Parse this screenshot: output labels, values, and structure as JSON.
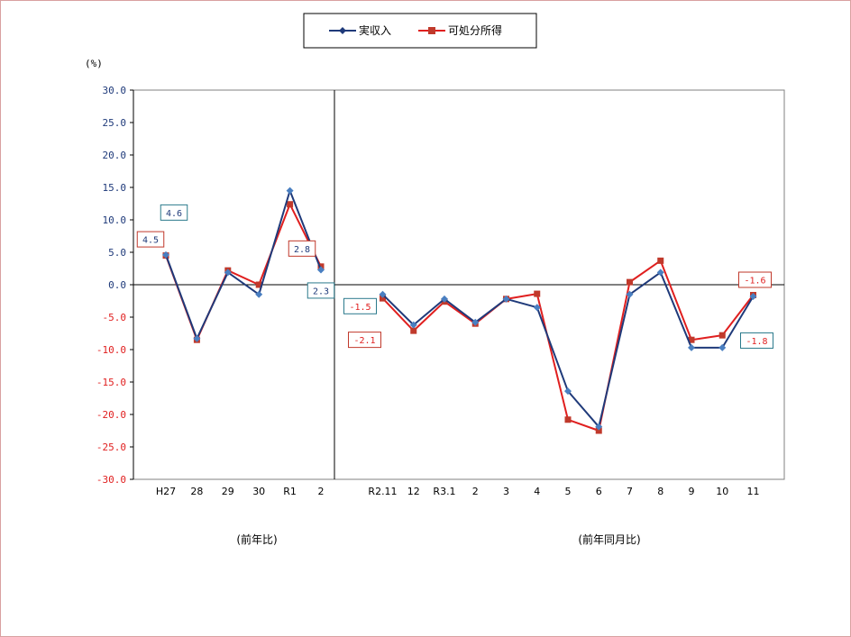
{
  "chart_data": {
    "type": "line",
    "unit_label": "(%)",
    "ylim": [
      -30,
      30
    ],
    "yticks": [
      "30.0",
      "25.0",
      "20.0",
      "15.0",
      "10.0",
      "5.0",
      "0.0",
      "-5.0",
      "-10.0",
      "-15.0",
      "-20.0",
      "-25.0",
      "-30.0"
    ],
    "legend": [
      "実収入",
      "可処分所得"
    ],
    "colors": {
      "実収入": "#1f3a7a",
      "可処分所得": "#e01f1f",
      "positive_tick": "#1f3a7a",
      "negative_tick": "#e01f1f"
    },
    "sections": [
      {
        "caption": "(前年比)",
        "categories": [
          "H27",
          "28",
          "29",
          "30",
          "R1",
          "2"
        ],
        "series": [
          {
            "name": "実収入",
            "values": [
              4.6,
              -8.3,
              1.9,
              -1.5,
              14.5,
              2.3
            ]
          },
          {
            "name": "可処分所得",
            "values": [
              4.5,
              -8.5,
              2.2,
              0.0,
              12.4,
              2.8
            ]
          }
        ]
      },
      {
        "caption": "(前年同月比)",
        "categories": [
          "R2.11",
          "12",
          "R3.1",
          "2",
          "3",
          "4",
          "5",
          "6",
          "7",
          "8",
          "9",
          "10",
          "11"
        ],
        "series": [
          {
            "name": "実収入",
            "values": [
              -1.5,
              -6.2,
              -2.2,
              -5.8,
              -2.2,
              -3.5,
              -16.4,
              -21.9,
              -1.5,
              1.9,
              -9.7,
              -9.7,
              -1.8
            ]
          },
          {
            "name": "可処分所得",
            "values": [
              -2.1,
              -7.1,
              -2.6,
              -6.0,
              -2.2,
              -1.4,
              -20.8,
              -22.5,
              0.4,
              3.7,
              -8.5,
              -7.8,
              -1.6
            ]
          }
        ]
      }
    ],
    "data_labels": [
      {
        "text": "4.6",
        "series": "実収入",
        "section": 0,
        "index": 0
      },
      {
        "text": "4.5",
        "series": "可処分所得",
        "section": 0,
        "index": 0
      },
      {
        "text": "2.8",
        "series": "可処分所得",
        "section": 0,
        "index": 5
      },
      {
        "text": "2.3",
        "series": "実収入",
        "section": 0,
        "index": 5
      },
      {
        "text": "-1.5",
        "series": "実収入",
        "section": 1,
        "index": 0
      },
      {
        "text": "-2.1",
        "series": "可処分所得",
        "section": 1,
        "index": 0
      },
      {
        "text": "-1.6",
        "series": "可処分所得",
        "section": 1,
        "index": 12
      },
      {
        "text": "-1.8",
        "series": "実収入",
        "section": 1,
        "index": 12
      }
    ]
  }
}
